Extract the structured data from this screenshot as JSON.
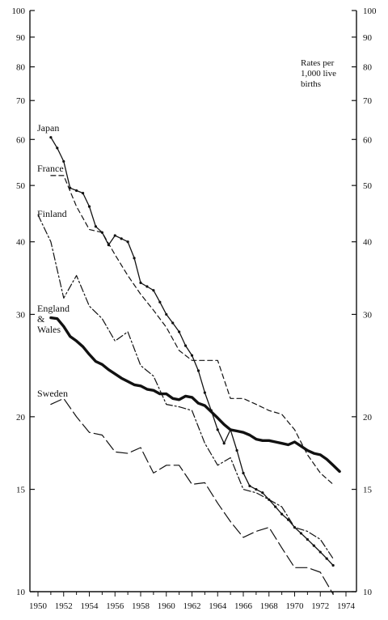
{
  "chart_data": {
    "type": "line",
    "title": "",
    "xlabel": "",
    "ylabel": "",
    "yscale": "log",
    "ylim": [
      10,
      100
    ],
    "xlim": [
      1949,
      1975
    ],
    "x_ticks": [
      "1950",
      "1952",
      "1954",
      "1956",
      "1958",
      "1960",
      "1962",
      "1964",
      "1966",
      "1968",
      "1970",
      "1972",
      "1974"
    ],
    "y_ticks_left": [
      "100",
      "90",
      "80",
      "70",
      "60",
      "50",
      "40",
      "30",
      "20",
      "15",
      "10"
    ],
    "y_ticks_right": [
      "100",
      "90",
      "80",
      "70",
      "60",
      "50",
      "40",
      "30",
      "20",
      "15",
      "10"
    ],
    "y_tick_values": [
      100,
      90,
      80,
      70,
      60,
      50,
      40,
      30,
      20,
      15,
      10
    ],
    "annotation": [
      "Rates per",
      "1,000 live",
      "births"
    ],
    "grid": false,
    "legend": "inline labels",
    "series": [
      {
        "name": "Japan",
        "dash": "solid-dots",
        "label_lines": [
          "Japan"
        ],
        "x": [
          1951,
          1951.5,
          1952,
          1952.5,
          1953,
          1953.5,
          1954,
          1954.5,
          1955,
          1955.5,
          1956,
          1956.5,
          1957,
          1957.5,
          1958,
          1958.5,
          1959,
          1959.5,
          1960,
          1960.5,
          1961,
          1961.5,
          1962,
          1962.5,
          1963,
          1963.5,
          1964,
          1964.5,
          1965,
          1965.5,
          1966,
          1966.5,
          1967,
          1967.5,
          1968,
          1968.5,
          1969,
          1969.5,
          1970,
          1970.5,
          1971,
          1971.5,
          1972,
          1972.5,
          1973
        ],
        "y": [
          60.5,
          58,
          55,
          49.5,
          49,
          48.5,
          46,
          42.5,
          41.5,
          39.5,
          41,
          40.5,
          40,
          37.5,
          34,
          33.5,
          33,
          31.5,
          30,
          29,
          28,
          26.5,
          25.5,
          24,
          22,
          20.5,
          19,
          18,
          19,
          17.5,
          16,
          15.2,
          15,
          14.8,
          14.4,
          14,
          13.6,
          13.3,
          12.9,
          12.6,
          12.3,
          12,
          11.7,
          11.4,
          11.1
        ]
      },
      {
        "name": "France",
        "dash": "dashed",
        "label_lines": [
          "France"
        ],
        "x": [
          1951,
          1952,
          1953,
          1954,
          1955,
          1956,
          1957,
          1958,
          1959,
          1960,
          1961,
          1962,
          1963,
          1964,
          1965,
          1966,
          1967,
          1968,
          1969,
          1970,
          1971,
          1972,
          1973
        ],
        "y": [
          52,
          52,
          46,
          42,
          41.5,
          38,
          35,
          32.5,
          30.5,
          28.5,
          26,
          25,
          25,
          25,
          21.5,
          21.5,
          21,
          20.5,
          20.2,
          19,
          17.2,
          16,
          15.3
        ]
      },
      {
        "name": "Finland",
        "dash": "dash-dot",
        "label_lines": [
          "Finland"
        ],
        "x": [
          1950,
          1951,
          1952,
          1953,
          1954,
          1955,
          1956,
          1957,
          1958,
          1959,
          1960,
          1961,
          1962,
          1963,
          1964,
          1965,
          1966,
          1967,
          1968,
          1969,
          1970,
          1971,
          1972,
          1973
        ],
        "y": [
          44.5,
          40,
          32,
          35,
          31,
          29.5,
          27,
          28,
          24.5,
          23.5,
          21,
          20.8,
          20.5,
          18,
          16.5,
          17,
          15,
          14.8,
          14.4,
          14,
          12.9,
          12.7,
          12.3,
          11.4
        ]
      },
      {
        "name": "England & Wales",
        "dash": "thick",
        "label_lines": [
          "England",
          "&",
          "Wales"
        ],
        "x": [
          1951,
          1951.5,
          1952,
          1952.5,
          1953,
          1953.5,
          1954,
          1954.5,
          1955,
          1955.5,
          1956,
          1956.5,
          1957,
          1957.5,
          1958,
          1958.5,
          1959,
          1959.5,
          1960,
          1960.5,
          1961,
          1961.5,
          1962,
          1962.5,
          1963,
          1963.5,
          1964,
          1964.5,
          1965,
          1965.5,
          1966,
          1966.5,
          1967,
          1967.5,
          1968,
          1968.5,
          1969,
          1969.5,
          1970,
          1970.5,
          1971,
          1971.5,
          1972,
          1972.5,
          1973,
          1973.5
        ],
        "y": [
          29.6,
          29.5,
          28.6,
          27.5,
          27,
          26.4,
          25.6,
          24.9,
          24.6,
          24.1,
          23.7,
          23.3,
          23,
          22.7,
          22.6,
          22.3,
          22.2,
          21.9,
          21.9,
          21.5,
          21.4,
          21.7,
          21.6,
          21.1,
          20.9,
          20.4,
          19.9,
          19.4,
          19.0,
          18.9,
          18.8,
          18.6,
          18.3,
          18.2,
          18.2,
          18.1,
          18.0,
          17.9,
          18.1,
          17.8,
          17.5,
          17.3,
          17.2,
          16.9,
          16.5,
          16.1
        ]
      },
      {
        "name": "Sweden",
        "dash": "long-dash",
        "label_lines": [
          "Sweden"
        ],
        "x": [
          1951,
          1952,
          1953,
          1954,
          1955,
          1956,
          1957,
          1958,
          1959,
          1960,
          1961,
          1962,
          1963,
          1964,
          1965,
          1966,
          1967,
          1968,
          1969,
          1970,
          1971,
          1972,
          1973
        ],
        "y": [
          21,
          21.5,
          20,
          18.8,
          18.6,
          17.4,
          17.3,
          17.7,
          16,
          16.5,
          16.5,
          15.3,
          15.4,
          14.2,
          13.2,
          12.4,
          12.7,
          12.9,
          11.9,
          11.0,
          11.0,
          10.8,
          9.9
        ]
      }
    ]
  }
}
